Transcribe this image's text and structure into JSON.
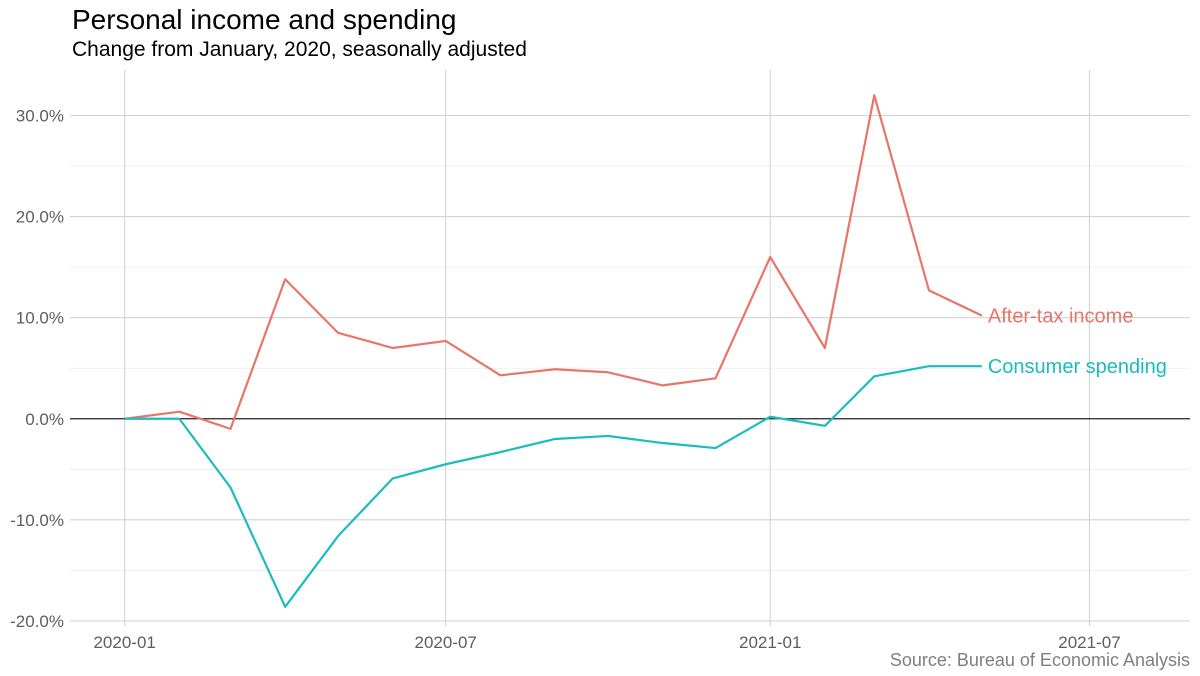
{
  "title": "Personal income and spending",
  "subtitle": "Change from January, 2020, seasonally adjusted",
  "source": "Source: Bureau of Economic Analysis",
  "chart_data": {
    "type": "line",
    "x": [
      "2020-01",
      "2020-02",
      "2020-03",
      "2020-04",
      "2020-05",
      "2020-06",
      "2020-07",
      "2020-08",
      "2020-09",
      "2020-10",
      "2020-11",
      "2020-12",
      "2021-01",
      "2021-02",
      "2021-03",
      "2021-04",
      "2021-05"
    ],
    "series": [
      {
        "name": "After-tax income",
        "color": "#e8756a",
        "values": [
          0.0,
          0.7,
          -1.0,
          13.8,
          8.5,
          7.0,
          7.7,
          4.3,
          4.9,
          4.6,
          3.3,
          4.0,
          16.0,
          7.0,
          32.0,
          12.7,
          10.2
        ]
      },
      {
        "name": "Consumer spending",
        "color": "#1cbcbc",
        "values": [
          0.0,
          0.0,
          -6.8,
          -18.6,
          -11.6,
          -5.9,
          -4.5,
          -3.3,
          -2.0,
          -1.7,
          -2.4,
          -2.9,
          0.2,
          -0.7,
          4.2,
          5.2,
          5.2
        ]
      }
    ],
    "yticks": [
      -20,
      -10,
      0,
      10,
      20,
      30
    ],
    "ytick_labels": [
      "-20.0%",
      "-10.0%",
      "0.0%",
      "10.0%",
      "20.0%",
      "30.0%"
    ],
    "xticks": [
      "2020-01",
      "2020-07",
      "2021-01",
      "2021-07"
    ],
    "ylim": [
      -20.5,
      34.5
    ],
    "xlim": [
      "2019-12-01",
      "2021-08-27"
    ],
    "grid": true,
    "legend": "direct labels at line ends"
  }
}
